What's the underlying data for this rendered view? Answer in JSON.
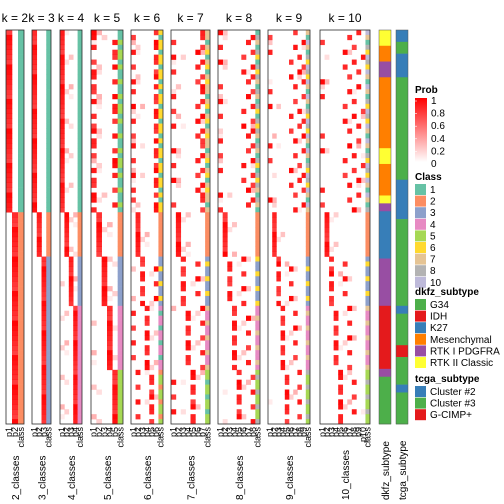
{
  "chart_data": {
    "type": "heatmap",
    "panels": [
      {
        "title": "k = 2",
        "k": 2,
        "columns": [
          "p1",
          "p2",
          "class"
        ],
        "xlabel": "2_classes"
      },
      {
        "title": "k = 3",
        "k": 3,
        "columns": [
          "p1",
          "p2",
          "p3",
          "class"
        ],
        "xlabel": "3_classes"
      },
      {
        "title": "k = 4",
        "k": 4,
        "columns": [
          "p1",
          "p2",
          "p3",
          "p4",
          "class"
        ],
        "xlabel": "4_classes"
      },
      {
        "title": "k = 5",
        "k": 5,
        "columns": [
          "p1",
          "p2",
          "p3",
          "p4",
          "p5",
          "class"
        ],
        "xlabel": "5_classes"
      },
      {
        "title": "k = 6",
        "k": 6,
        "columns": [
          "p1",
          "p2",
          "p3",
          "p4",
          "p5",
          "p6",
          "class"
        ],
        "xlabel": "6_classes"
      },
      {
        "title": "k = 7",
        "k": 7,
        "columns": [
          "p1",
          "p2",
          "p3",
          "p4",
          "p5",
          "p6",
          "p7",
          "class"
        ],
        "xlabel": "7_classes"
      },
      {
        "title": "k = 8",
        "k": 8,
        "columns": [
          "p1",
          "p2",
          "p3",
          "p4",
          "p5",
          "p6",
          "p7",
          "p8",
          "class"
        ],
        "xlabel": "8_classes"
      },
      {
        "title": "k = 9",
        "k": 9,
        "columns": [
          "p1",
          "p2",
          "p3",
          "p4",
          "p5",
          "p6",
          "p7",
          "p8",
          "p9",
          "class"
        ],
        "xlabel": "9_classes"
      },
      {
        "title": "k = 10",
        "k": 10,
        "columns": [
          "p1",
          "p2",
          "p3",
          "p4",
          "p5",
          "p6",
          "p7",
          "p8",
          "p9",
          "p10",
          "class"
        ],
        "xlabel": "10_classes"
      }
    ],
    "annotation_columns": [
      {
        "label": "dkfz_subtype",
        "segments": [
          {
            "value": "RTK II Classic",
            "from": 0.0,
            "to": 0.04
          },
          {
            "value": "Mesenchymal",
            "from": 0.04,
            "to": 0.08
          },
          {
            "value": "RTK I PDGFRA",
            "from": 0.08,
            "to": 0.12
          },
          {
            "value": "Mesenchymal",
            "from": 0.12,
            "to": 0.3
          },
          {
            "value": "RTK II Classic",
            "from": 0.3,
            "to": 0.34
          },
          {
            "value": "Mesenchymal",
            "from": 0.34,
            "to": 0.42
          },
          {
            "value": "RTK II Classic",
            "from": 0.42,
            "to": 0.44
          },
          {
            "value": "RTK I PDGFRA",
            "from": 0.44,
            "to": 0.46
          },
          {
            "value": "K27",
            "from": 0.46,
            "to": 0.58
          },
          {
            "value": "RTK I PDGFRA",
            "from": 0.58,
            "to": 0.7
          },
          {
            "value": "IDH",
            "from": 0.7,
            "to": 0.86
          },
          {
            "value": "RTK I PDGFRA",
            "from": 0.86,
            "to": 0.88
          },
          {
            "value": "G34",
            "from": 0.88,
            "to": 1.0
          }
        ]
      },
      {
        "label": "tcga_subtype",
        "segments": [
          {
            "value": "Cluster #2",
            "from": 0.0,
            "to": 0.03
          },
          {
            "value": "Cluster #3",
            "from": 0.03,
            "to": 0.06
          },
          {
            "value": "Cluster #2",
            "from": 0.06,
            "to": 0.12
          },
          {
            "value": "Cluster #3",
            "from": 0.12,
            "to": 0.38
          },
          {
            "value": "Cluster #2",
            "from": 0.38,
            "to": 0.48
          },
          {
            "value": "Cluster #3",
            "from": 0.48,
            "to": 0.7
          },
          {
            "value": "Cluster #2",
            "from": 0.7,
            "to": 0.72
          },
          {
            "value": "Cluster #3",
            "from": 0.72,
            "to": 0.8
          },
          {
            "value": "G-CIMP+",
            "from": 0.8,
            "to": 0.83
          },
          {
            "value": "Cluster #3",
            "from": 0.83,
            "to": 0.9
          },
          {
            "value": "Cluster #2",
            "from": 0.9,
            "to": 0.92
          },
          {
            "value": "Cluster #3",
            "from": 0.92,
            "to": 1.0
          }
        ]
      }
    ],
    "legends": {
      "prob": {
        "title": "Prob",
        "ticks": [
          "1",
          "0.8",
          "0.6",
          "0.4",
          "0.2",
          "0"
        ],
        "colors": [
          "#FFFFFF",
          "#FF0000"
        ]
      },
      "class": {
        "title": "Class",
        "items": [
          {
            "label": "1",
            "color": "#66C2A5"
          },
          {
            "label": "2",
            "color": "#FC8D62"
          },
          {
            "label": "3",
            "color": "#8DA0CB"
          },
          {
            "label": "4",
            "color": "#E78AC3"
          },
          {
            "label": "5",
            "color": "#A6D854"
          },
          {
            "label": "6",
            "color": "#FFD92F"
          },
          {
            "label": "7",
            "color": "#E5C494"
          },
          {
            "label": "8",
            "color": "#B3B3B3"
          },
          {
            "label": "10",
            "color": "#BEBADA"
          }
        ]
      },
      "dkfz_subtype": {
        "title": "dkfz_subtype",
        "items": [
          {
            "label": "G34",
            "color": "#4DAF4A"
          },
          {
            "label": "IDH",
            "color": "#E41A1C"
          },
          {
            "label": "K27",
            "color": "#377EB8"
          },
          {
            "label": "Mesenchymal",
            "color": "#FF7F00"
          },
          {
            "label": "RTK I PDGFRA",
            "color": "#984EA3"
          },
          {
            "label": "RTK II Classic",
            "color": "#FFFF33"
          }
        ]
      },
      "tcga_subtype": {
        "title": "tcga_subtype",
        "items": [
          {
            "label": "Cluster #2",
            "color": "#377EB8"
          },
          {
            "label": "Cluster #3",
            "color": "#4DAF4A"
          },
          {
            "label": "G-CIMP+",
            "color": "#E41A1C"
          }
        ]
      }
    }
  }
}
